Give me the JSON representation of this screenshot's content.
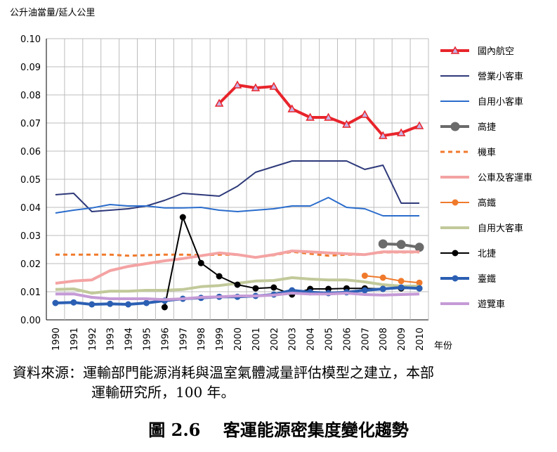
{
  "chart_data": {
    "type": "line",
    "ylabel": "公升油當量/延人公里",
    "xlabel": "年份",
    "ylim": [
      0,
      0.1
    ],
    "yticks": [
      "0.00",
      "0.01",
      "0.02",
      "0.03",
      "0.04",
      "0.05",
      "0.06",
      "0.07",
      "0.08",
      "0.09",
      "0.10"
    ],
    "categories": [
      "1990",
      "1991",
      "1992",
      "1993",
      "1994",
      "1995",
      "1996",
      "1997",
      "1998",
      "1999",
      "2000",
      "2001",
      "2002",
      "2003",
      "2004",
      "2005",
      "2006",
      "2007",
      "2008",
      "2009",
      "2010"
    ],
    "series": [
      {
        "name": "國內航空",
        "color": "#e8242b",
        "style": "thick",
        "marker": "triangle",
        "values": [
          null,
          null,
          null,
          null,
          null,
          null,
          null,
          null,
          null,
          0.077,
          0.0835,
          0.0825,
          0.083,
          0.075,
          0.072,
          0.072,
          0.0695,
          0.073,
          0.0655,
          0.0665,
          0.069
        ]
      },
      {
        "name": "營業小客車",
        "color": "#2e3a7a",
        "style": "thin",
        "marker": "none",
        "values": [
          0.0445,
          0.045,
          0.0385,
          0.039,
          0.0395,
          0.0405,
          0.0425,
          0.045,
          0.0445,
          0.044,
          0.0475,
          0.0525,
          0.0545,
          0.0565,
          0.0565,
          0.0565,
          0.0565,
          0.0535,
          0.055,
          0.0415,
          0.0415
        ]
      },
      {
        "name": "自用小客車",
        "color": "#2a6ccc",
        "style": "thin",
        "marker": "none",
        "values": [
          0.038,
          0.039,
          0.0398,
          0.041,
          0.0405,
          0.0405,
          0.0398,
          0.0398,
          0.04,
          0.039,
          0.0385,
          0.039,
          0.0395,
          0.0405,
          0.0405,
          0.0435,
          0.04,
          0.0395,
          0.037,
          0.037,
          0.037
        ]
      },
      {
        "name": "高捷",
        "color": "#6b6b6b",
        "style": "thick",
        "marker": "circle",
        "values": [
          null,
          null,
          null,
          null,
          null,
          null,
          null,
          null,
          null,
          null,
          null,
          null,
          null,
          null,
          null,
          null,
          null,
          null,
          0.027,
          0.0268,
          0.0258
        ]
      },
      {
        "name": "機車",
        "color": "#f07a2c",
        "style": "dash",
        "marker": "none",
        "values": [
          0.0232,
          0.0232,
          0.0232,
          0.0232,
          0.0228,
          0.023,
          0.0232,
          0.0232,
          0.023,
          0.0232,
          0.0232,
          0.0222,
          0.023,
          0.0242,
          0.0235,
          0.0228,
          0.0232,
          0.0232,
          0.024,
          0.024,
          0.024
        ]
      },
      {
        "name": "公車及客運車",
        "color": "#f4a3a3",
        "style": "thick",
        "marker": "none",
        "values": [
          0.013,
          0.0138,
          0.0142,
          0.0175,
          0.019,
          0.02,
          0.021,
          0.0218,
          0.0228,
          0.0238,
          0.0232,
          0.0222,
          0.0232,
          0.0245,
          0.0242,
          0.0238,
          0.0235,
          0.0232,
          0.0242,
          0.0242,
          0.0242
        ]
      },
      {
        "name": "高鐵",
        "color": "#f07a2c",
        "style": "thin",
        "marker": "circle",
        "values": [
          null,
          null,
          null,
          null,
          null,
          null,
          null,
          null,
          null,
          null,
          null,
          null,
          null,
          null,
          null,
          null,
          null,
          0.0157,
          0.015,
          0.0138,
          0.0132
        ]
      },
      {
        "name": "自用大客車",
        "color": "#c2c99a",
        "style": "thick",
        "marker": "none",
        "values": [
          0.0108,
          0.011,
          0.0095,
          0.0102,
          0.0102,
          0.0105,
          0.0105,
          0.0108,
          0.0118,
          0.0122,
          0.013,
          0.0138,
          0.014,
          0.015,
          0.0145,
          0.0142,
          0.0142,
          0.0135,
          0.0125,
          0.012,
          0.012
        ]
      },
      {
        "name": "北捷",
        "color": "#000000",
        "style": "thin",
        "marker": "circle",
        "values": [
          null,
          null,
          null,
          null,
          null,
          null,
          0.0045,
          0.0365,
          0.0202,
          0.0155,
          0.0125,
          0.0112,
          0.0115,
          0.009,
          0.011,
          0.011,
          0.0112,
          0.0112,
          0.011,
          0.0112,
          0.0112
        ]
      },
      {
        "name": "臺鐵",
        "color": "#2b5fb3",
        "style": "thick",
        "marker": "circle",
        "values": [
          0.006,
          0.0062,
          0.0055,
          0.0057,
          0.0055,
          0.006,
          0.0068,
          0.0075,
          0.0078,
          0.0082,
          0.0082,
          0.0085,
          0.009,
          0.0105,
          0.0098,
          0.0095,
          0.0098,
          0.0105,
          0.011,
          0.0115,
          0.0112
        ]
      },
      {
        "name": "遊覽車",
        "color": "#c59ad6",
        "style": "thick",
        "marker": "none",
        "values": [
          0.0092,
          0.0092,
          0.008,
          0.0075,
          0.0075,
          0.0075,
          0.0072,
          0.0075,
          0.008,
          0.0082,
          0.0085,
          0.0085,
          0.0088,
          0.0095,
          0.0092,
          0.0092,
          0.0095,
          0.009,
          0.0088,
          0.009,
          0.0092
        ]
      }
    ]
  },
  "source_note": {
    "line1": "資料來源：運輸部門能源消耗與溫室氣體減量評估模型之建立，本部",
    "line2": "運輸研究所，100 年。"
  },
  "caption": "圖 2.6　 客運能源密集度變化趨勢"
}
